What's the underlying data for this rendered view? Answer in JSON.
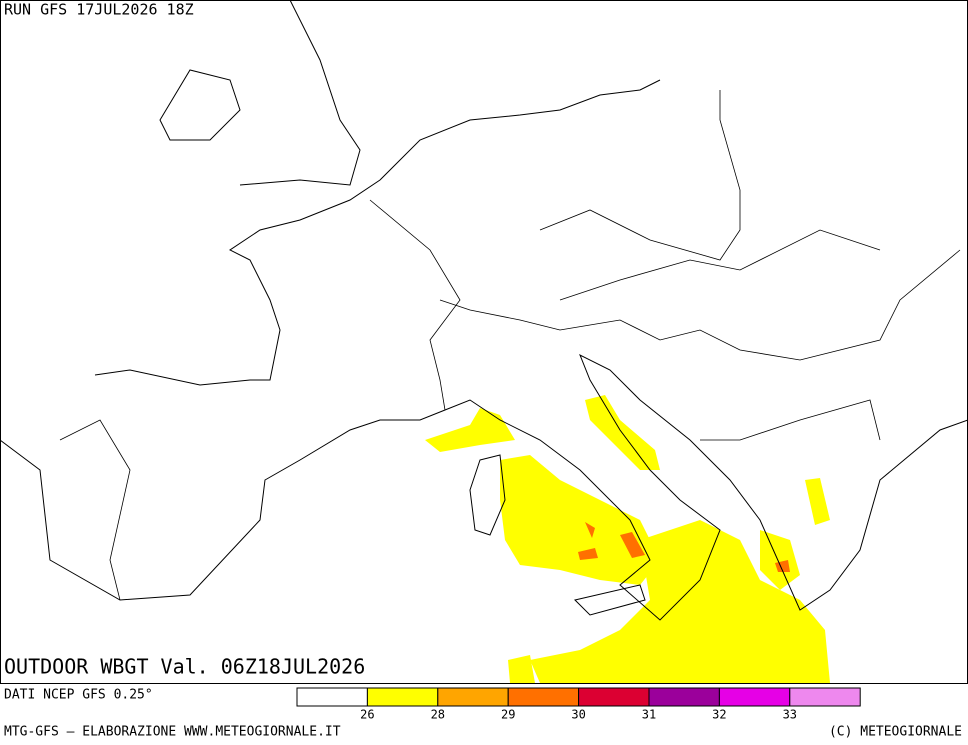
{
  "header": {
    "run": "RUN GFS 17JUL2026 18Z",
    "title": "OUTDOOR WBGT Val. 06Z18JUL2026"
  },
  "legend": {
    "source": "DATI NCEP GFS 0.25°",
    "colors": [
      "#ffffff",
      "#ffff00",
      "#ffa500",
      "#ff7000",
      "#dc0032",
      "#9b009b",
      "#e600e6",
      "#ee88ee"
    ],
    "labels": [
      26,
      28,
      29,
      30,
      31,
      32,
      33
    ]
  },
  "footer": {
    "left": "MTG-GFS — ELABORAZIONE WWW.METEOGIORNALE.IT",
    "right": "(C) METEOGIORNALE"
  }
}
